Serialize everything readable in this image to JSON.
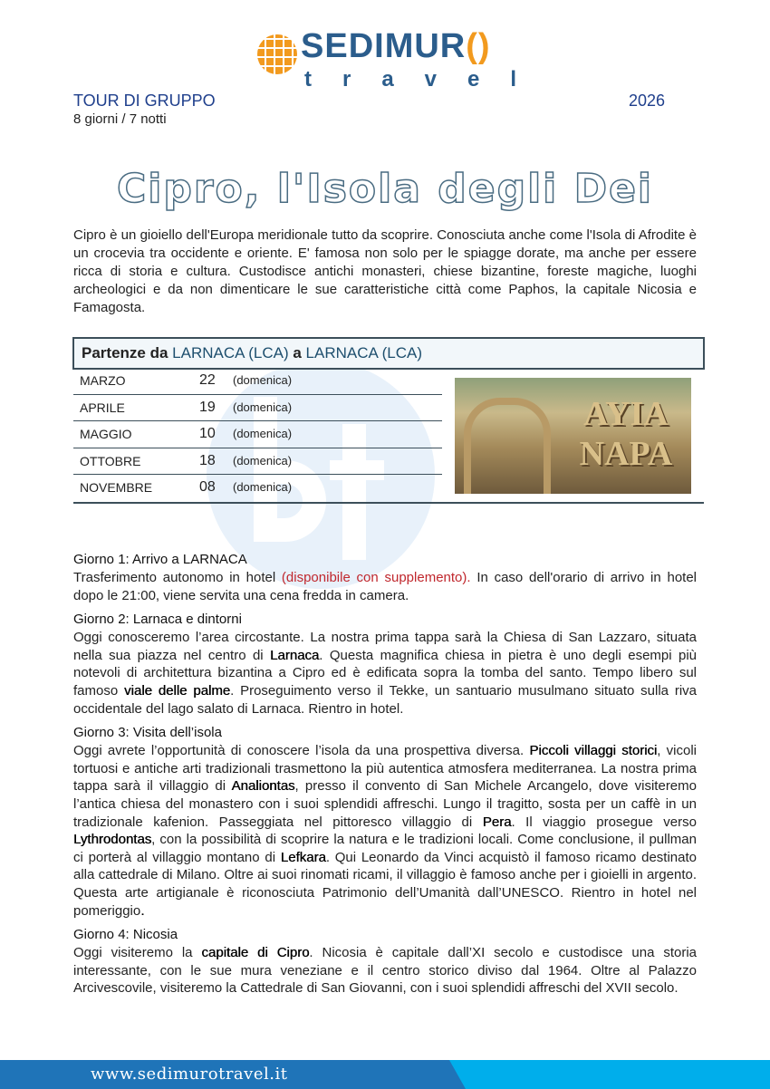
{
  "logo": {
    "line1": "SEDIMUR",
    "line1_accent": "()",
    "line2": "travel"
  },
  "header": {
    "tour_type": "TOUR DI GRUPPO",
    "year": "2026",
    "duration": "8 giorni / 7 notti"
  },
  "title": "Cipro, l'Isola degli Dei",
  "intro": "Cipro è un gioiello dell'Europa meridionale tutto da scoprire. Conosciuta anche come l'Isola di Afrodite  è un crocevia tra occidente e oriente. E' famosa non solo per le spiagge dorate, ma anche per essere ricca di storia e cultura. Custodisce antichi monasteri, chiese bizantine, foreste magiche, luoghi archeologici e da non dimenticare le sue caratteristiche città come Paphos, la capitale Nicosia e Famagosta.",
  "departures": {
    "label": "Partenze da ",
    "from": "LARNACA (LCA)",
    "sep": " a ",
    "to": "LARNACA (LCA)",
    "rows": [
      {
        "month": "MARZO",
        "day": "22",
        "weekday": "(domenica)"
      },
      {
        "month": "APRILE",
        "day": "19",
        "weekday": "(domenica)"
      },
      {
        "month": "MAGGIO",
        "day": "10",
        "weekday": "(domenica)"
      },
      {
        "month": "OTTOBRE",
        "day": "18",
        "weekday": "(domenica)"
      },
      {
        "month": "NOVEMBRE",
        "day": "08",
        "weekday": "(domenica)"
      }
    ],
    "photo_caption": "AYIA NAPA"
  },
  "watermark": "bf",
  "days": [
    {
      "title": "Giorno 1: Arrivo a LARNACA",
      "segments": [
        {
          "t": "Trasferimento autonomo in hotel "
        },
        {
          "t": "(disponibile con supplemento).",
          "red": true
        },
        {
          "t": " In caso dell'orario di arrivo in hotel dopo le 21:00, viene servita una cena fredda in camera."
        }
      ]
    },
    {
      "title": "Giorno 2: Larnaca e dintorni",
      "segments": [
        {
          "t": "Oggi conosceremo l’area circostante. La nostra prima tappa sarà la Chiesa di San Lazzaro, situata nella sua piazza nel centro di "
        },
        {
          "t": "Larnaca",
          "b": true
        },
        {
          "t": ". Questa magnifica chiesa in pietra è uno degli esempi più notevoli di architettura bizantina a Cipro ed è edificata sopra la tomba del santo. Tempo libero sul famoso "
        },
        {
          "t": "viale delle palme",
          "b": true
        },
        {
          "t": ". Proseguimento verso il Tekke, un santuario musulmano situato sulla riva occidentale del lago salato di Larnaca. Rientro in hotel."
        }
      ]
    },
    {
      "title": "Giorno 3: Visita dell’isola",
      "segments": [
        {
          "t": "Oggi avrete l’opportunità di conoscere l’isola da una prospettiva diversa. "
        },
        {
          "t": "Piccoli villaggi storici",
          "b": true
        },
        {
          "t": ", vicoli tortuosi e antiche arti tradizionali trasmettono la più autentica atmosfera mediterranea. La nostra prima tappa sarà il villaggio di "
        },
        {
          "t": "Analiontas",
          "b": true
        },
        {
          "t": ", presso il convento di San Michele Arcangelo, dove visiteremo l’antica chiesa del monastero con i suoi splendidi affreschi. Lungo il tragitto, sosta per un caffè in un tradizionale kafenion. Passeggiata nel pittoresco villaggio di "
        },
        {
          "t": "Pera",
          "b": true
        },
        {
          "t": ". Il viaggio prosegue verso "
        },
        {
          "t": "Lythrodontas",
          "b": true
        },
        {
          "t": ", con la possibilità di scoprire la natura e le tradizioni locali. Come conclusione, il pullman ci porterà al villaggio montano di "
        },
        {
          "t": "Lefkara",
          "b": true
        },
        {
          "t": ". Qui Leonardo da Vinci acquistò il famoso ricamo destinato alla cattedrale di Milano. Oltre ai suoi rinomati ricami, il villaggio è famoso anche per i gioielli in argento. Questa arte artigianale è riconosciuta Patrimonio dell’Umanità dall’UNESCO. Rientro in hotel nel pomeriggio"
        },
        {
          "t": ".",
          "b": true
        }
      ]
    },
    {
      "title": "Giorno 4: Nicosia",
      "segments": [
        {
          "t": "Oggi visiteremo la "
        },
        {
          "t": "capitale di Cipro",
          "b": true
        },
        {
          "t": ". Nicosia è capitale dall’XI secolo e custodisce una storia interessante, con le sue mura veneziane e il centro storico diviso dal 1964. Oltre al Palazzo Arcivescovile, visiteremo la Cattedrale di San Giovanni, con i suoi splendidi affreschi del XVII secolo."
        }
      ]
    }
  ],
  "footer": {
    "url": "www.sedimurotravel.it"
  },
  "colors": {
    "brand_blue": "#2b5d8c",
    "brand_orange": "#f29a1e",
    "footer_blue": "#1f74b8",
    "footer_cyan": "#00aeeb",
    "highlight_red": "#c0272d"
  }
}
